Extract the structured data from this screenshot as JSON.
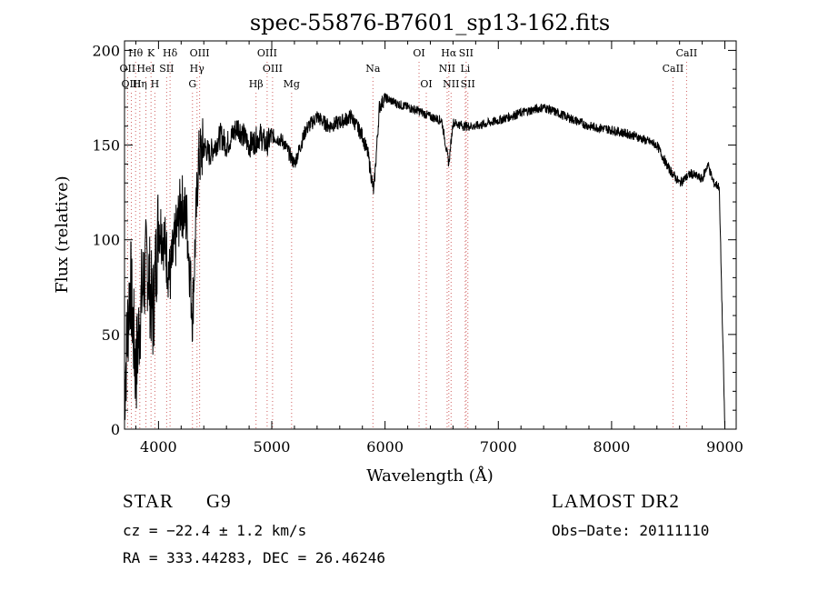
{
  "chart_data": {
    "type": "line",
    "title": "spec-55876-B7601_sp13-162.fits",
    "xlabel": "Wavelength (Å)",
    "ylabel": "Flux (relative)",
    "xlim": [
      3700,
      9100
    ],
    "ylim": [
      0,
      205
    ],
    "xticks": [
      4000,
      5000,
      6000,
      7000,
      8000,
      9000
    ],
    "yticks": [
      0,
      50,
      100,
      150,
      200
    ],
    "grid": false,
    "series": [
      {
        "x": [
          3700,
          3750,
          3800,
          3850,
          3900,
          3950,
          4000,
          4050,
          4100,
          4150,
          4200,
          4250,
          4300,
          4350,
          4400,
          4450,
          4500,
          4550,
          4600,
          4650,
          4700,
          4750,
          4800,
          4850,
          4900,
          4950,
          5000,
          5100,
          5200,
          5300,
          5400,
          5500,
          5600,
          5700,
          5800,
          5850,
          5900,
          5950,
          6000,
          6100,
          6200,
          6300,
          6400,
          6500,
          6563,
          6600,
          6700,
          6800,
          7000,
          7200,
          7400,
          7600,
          7800,
          8000,
          8200,
          8400,
          8500,
          8600,
          8700,
          8800,
          8850,
          8900,
          8950,
          9000
        ],
        "y": [
          20,
          80,
          30,
          70,
          90,
          60,
          110,
          100,
          80,
          100,
          120,
          110,
          60,
          140,
          150,
          145,
          150,
          155,
          150,
          155,
          160,
          155,
          150,
          152,
          155,
          150,
          155,
          152,
          140,
          158,
          165,
          160,
          162,
          165,
          155,
          145,
          125,
          170,
          175,
          172,
          170,
          168,
          165,
          163,
          140,
          162,
          160,
          160,
          163,
          167,
          170,
          165,
          160,
          158,
          155,
          150,
          138,
          130,
          135,
          132,
          140,
          130,
          128,
          0
        ]
      }
    ],
    "line_labels_top": [
      {
        "label": "Hθ",
        "x": 3798
      },
      {
        "label": "K",
        "x": 3934
      },
      {
        "label": "Hδ",
        "x": 4102
      },
      {
        "label": "OIII",
        "x": 4363
      },
      {
        "label": "OIII",
        "x": 4959
      },
      {
        "label": "OI",
        "x": 6300
      },
      {
        "label": "Hα",
        "x": 6563
      },
      {
        "label": "SII",
        "x": 6716
      },
      {
        "label": "CaII",
        "x": 8662
      }
    ],
    "line_labels_mid": [
      {
        "label": "OII",
        "x": 3727
      },
      {
        "label": "HeI",
        "x": 3889
      },
      {
        "label": "SII",
        "x": 4072
      },
      {
        "label": "Hγ",
        "x": 4340
      },
      {
        "label": "OIII",
        "x": 5007
      },
      {
        "label": "Na",
        "x": 5893
      },
      {
        "label": "NII",
        "x": 6548
      },
      {
        "label": "Li",
        "x": 6708
      },
      {
        "label": "CaII",
        "x": 8542
      }
    ],
    "line_labels_low": [
      {
        "label": "OIII",
        "x": 3760
      },
      {
        "label": "Hη",
        "x": 3835
      },
      {
        "label": "H",
        "x": 3968
      },
      {
        "label": "G",
        "x": 4300
      },
      {
        "label": "Hβ",
        "x": 4861
      },
      {
        "label": "Mg",
        "x": 5175
      },
      {
        "label": "OI",
        "x": 6364
      },
      {
        "label": "NII",
        "x": 6583
      },
      {
        "label": "SII",
        "x": 6731
      }
    ]
  },
  "footer": {
    "class_label": "STAR",
    "subclass_label": "G9",
    "survey": "LAMOST DR2",
    "cz": "cz = −22.4 ± 1.2 km/s",
    "obs_date": "Obs−Date: 20111110",
    "coords": "RA = 333.44283, DEC =  26.46246"
  }
}
